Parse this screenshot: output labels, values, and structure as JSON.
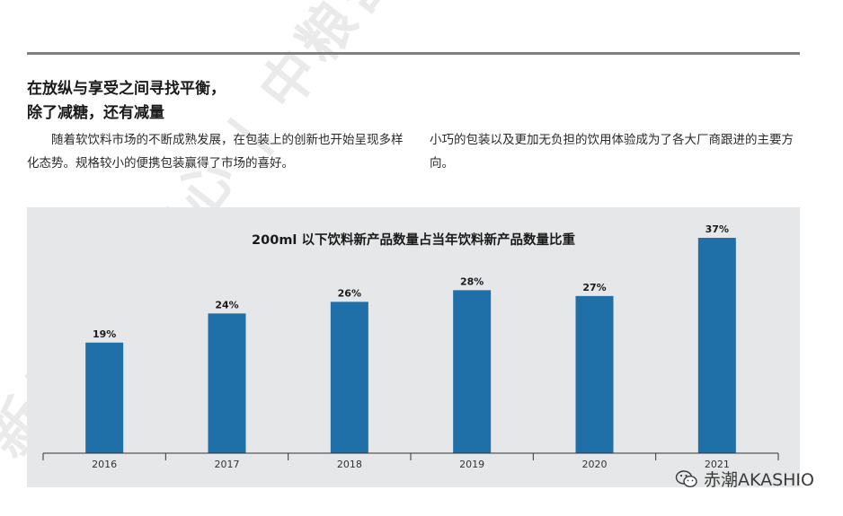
{
  "watermark": {
    "text": "新品研究中心 | 中粮营养健康研究院"
  },
  "article": {
    "headline_line1": "在放纵与享受之间寻找平衡，",
    "headline_line2": "除了减糖，还有减量",
    "paragraph_left": "随着软饮料市场的不断成熟发展，在包装上的创新也开始呈现多样化态势。规格较小的便携包装赢得了市场的喜好。",
    "paragraph_right": "小巧的包装以及更加无负担的饮用体验成为了各大厂商跟进的主要方向。"
  },
  "colors": {
    "bar": "#1f6fa8",
    "panel": "#e6e7e8",
    "rule": "#808080"
  },
  "chart_data": {
    "type": "bar",
    "title": "200ml 以下饮料新产品数量占当年饮料新产品数量比重",
    "categories": [
      "2016",
      "2017",
      "2018",
      "2019",
      "2020",
      "2021"
    ],
    "values": [
      19,
      24,
      26,
      28,
      27,
      37
    ],
    "value_labels": [
      "19%",
      "24%",
      "26%",
      "28%",
      "27%",
      "37%"
    ],
    "unit": "%",
    "ylim": [
      0,
      37
    ],
    "grid": false,
    "legend": "none"
  },
  "credit": {
    "text": "赤潮AKASHIO",
    "icon": "wechat-icon"
  }
}
